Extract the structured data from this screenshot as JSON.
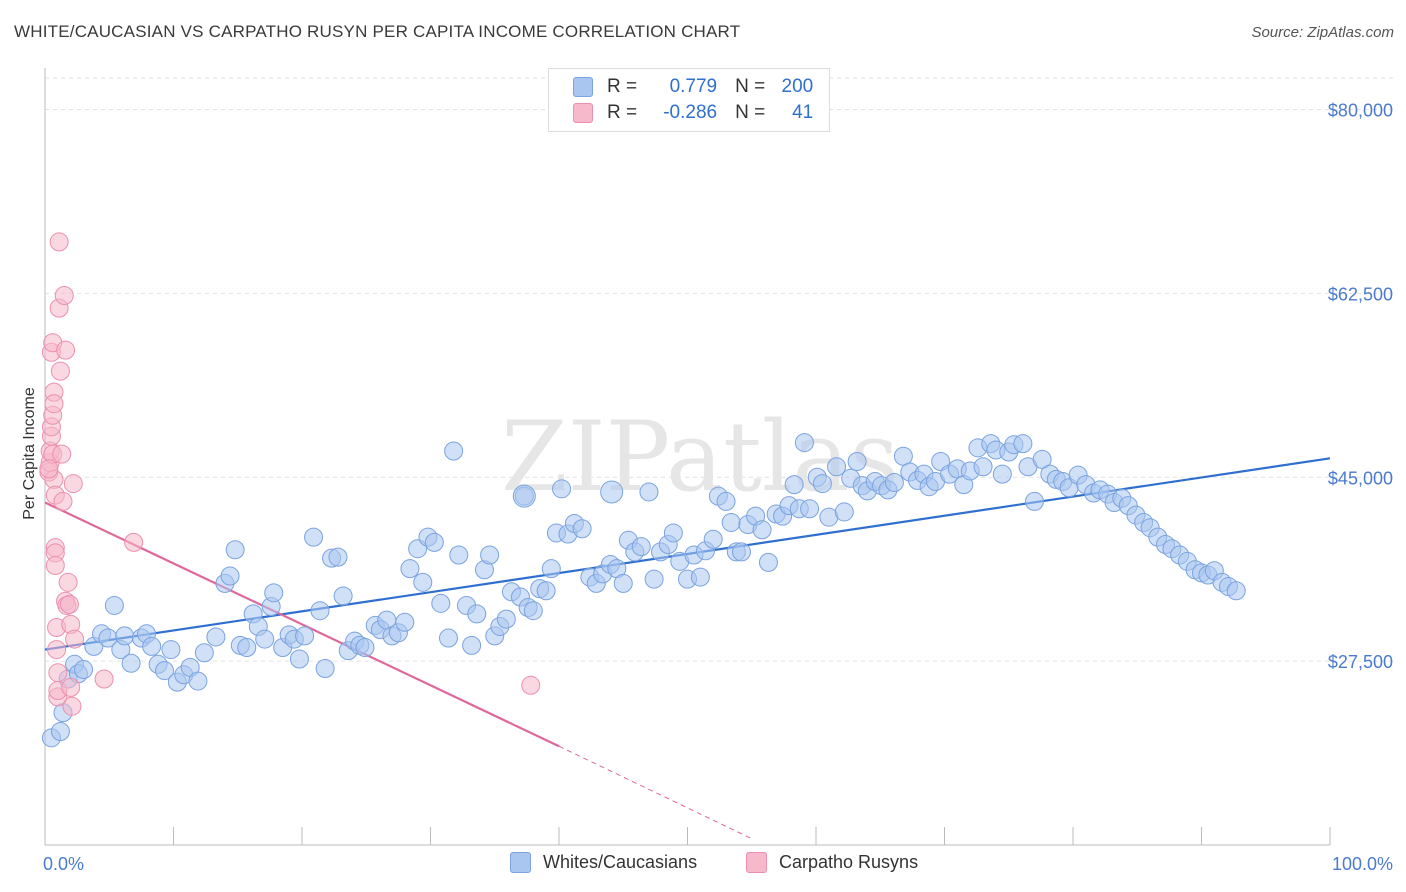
{
  "title": "WHITE/CAUCASIAN VS CARPATHO RUSYN PER CAPITA INCOME CORRELATION CHART",
  "source": "Source: ZipAtlas.com",
  "watermark": "ZIPatlas",
  "legend": {
    "rows": [
      {
        "r_label": "R =",
        "r_value": "0.779",
        "n_label": "N =",
        "n_value": "200",
        "color": "#a9c6f0",
        "border": "#7aa3e0"
      },
      {
        "r_label": "R =",
        "r_value": "-0.286",
        "n_label": "N =",
        "n_value": "41",
        "color": "#f6b8cb",
        "border": "#ec8fae"
      }
    ]
  },
  "bottom_legend": [
    {
      "label": "Whites/Caucasians",
      "color": "#a9c6f0",
      "border": "#7aa3e0"
    },
    {
      "label": "Carpatho Rusyns",
      "color": "#f6b8cb",
      "border": "#ec8fae"
    }
  ],
  "chart_data": {
    "type": "scatter",
    "title": "WHITE/CAUCASIAN VS CARPATHO RUSYN PER CAPITA INCOME CORRELATION CHART",
    "xlabel": "",
    "ylabel": "Per Capita Income",
    "xlim": [
      0,
      100
    ],
    "ylim": [
      10000,
      83000
    ],
    "x_tick_labels": [
      "0.0%",
      "100.0%"
    ],
    "y_ticks": [
      27500,
      45000,
      62500,
      80000
    ],
    "y_tick_labels": [
      "$27,500",
      "$45,000",
      "$62,500",
      "$80,000"
    ],
    "grid": true,
    "legend_placement": "top-center",
    "series": [
      {
        "name": "Whites/Caucasians",
        "color": "#a9c6f0",
        "stroke": "#7aa3e0",
        "trend": {
          "x0": 0,
          "y0": 28600,
          "x1": 100,
          "y1": 46800,
          "color": "#2f6fd0"
        },
        "points": [
          [
            0.5,
            20200
          ],
          [
            1.2,
            20800
          ],
          [
            1.4,
            22600
          ],
          [
            1.8,
            25800
          ],
          [
            2.3,
            27200
          ],
          [
            2.6,
            26300
          ],
          [
            3.0,
            26700
          ],
          [
            3.8,
            28900
          ],
          [
            4.4,
            30100
          ],
          [
            4.9,
            29700
          ],
          [
            5.4,
            32800
          ],
          [
            5.9,
            28600
          ],
          [
            6.2,
            29900
          ],
          [
            6.7,
            27300
          ],
          [
            7.5,
            29700
          ],
          [
            7.9,
            30100
          ],
          [
            8.3,
            28900
          ],
          [
            8.8,
            27200
          ],
          [
            9.3,
            26600
          ],
          [
            9.8,
            28600
          ],
          [
            10.3,
            25500
          ],
          [
            10.8,
            26200
          ],
          [
            11.3,
            26900
          ],
          [
            11.9,
            25600
          ],
          [
            12.4,
            28300
          ],
          [
            13.3,
            29800
          ],
          [
            14.0,
            34900
          ],
          [
            14.4,
            35600
          ],
          [
            14.8,
            38100
          ],
          [
            15.2,
            29000
          ],
          [
            15.7,
            28800
          ],
          [
            16.2,
            32000
          ],
          [
            16.6,
            30800
          ],
          [
            17.1,
            29600
          ],
          [
            17.6,
            32700
          ],
          [
            17.8,
            34000
          ],
          [
            18.5,
            28800
          ],
          [
            19.0,
            30000
          ],
          [
            19.4,
            29600
          ],
          [
            19.8,
            27700
          ],
          [
            20.2,
            29900
          ],
          [
            20.9,
            39300
          ],
          [
            21.4,
            32300
          ],
          [
            21.8,
            26800
          ],
          [
            22.3,
            37300
          ],
          [
            22.8,
            37400
          ],
          [
            23.2,
            33700
          ],
          [
            23.6,
            28500
          ],
          [
            24.1,
            29400
          ],
          [
            24.5,
            29000
          ],
          [
            24.9,
            28800
          ],
          [
            25.7,
            30900
          ],
          [
            26.1,
            30500
          ],
          [
            26.6,
            31400
          ],
          [
            27.0,
            29900
          ],
          [
            27.5,
            30200
          ],
          [
            28.0,
            31200
          ],
          [
            28.4,
            36300
          ],
          [
            29.0,
            38200
          ],
          [
            29.4,
            35000
          ],
          [
            29.8,
            39300
          ],
          [
            30.3,
            38800
          ],
          [
            30.8,
            33000
          ],
          [
            31.4,
            29700
          ],
          [
            31.8,
            47500
          ],
          [
            32.2,
            37600
          ],
          [
            32.8,
            32800
          ],
          [
            33.2,
            29000
          ],
          [
            33.6,
            32000
          ],
          [
            34.2,
            36200
          ],
          [
            34.6,
            37600
          ],
          [
            35.0,
            29900
          ],
          [
            35.4,
            30800
          ],
          [
            35.9,
            31500
          ],
          [
            36.3,
            34100
          ],
          [
            37.0,
            33600
          ],
          [
            37.3,
            43200
          ],
          [
            37.6,
            32600
          ],
          [
            38.0,
            32300
          ],
          [
            38.5,
            34400
          ],
          [
            39.0,
            34200
          ],
          [
            39.4,
            36300
          ],
          [
            39.8,
            39700
          ],
          [
            40.2,
            43900
          ],
          [
            40.7,
            39600
          ],
          [
            41.2,
            40600
          ],
          [
            41.8,
            40100
          ],
          [
            42.4,
            35500
          ],
          [
            42.9,
            34900
          ],
          [
            43.4,
            35800
          ],
          [
            44.0,
            36700
          ],
          [
            44.5,
            36300
          ],
          [
            45.0,
            34900
          ],
          [
            45.4,
            39000
          ],
          [
            45.9,
            37900
          ],
          [
            46.4,
            38400
          ],
          [
            47.0,
            43600
          ],
          [
            47.4,
            35300
          ],
          [
            47.9,
            37900
          ],
          [
            48.5,
            38600
          ],
          [
            48.9,
            39700
          ],
          [
            49.4,
            37000
          ],
          [
            50.0,
            35300
          ],
          [
            50.5,
            37600
          ],
          [
            51.0,
            35500
          ],
          [
            51.4,
            38000
          ],
          [
            52.0,
            39100
          ],
          [
            52.4,
            43200
          ],
          [
            53.0,
            42700
          ],
          [
            53.4,
            40700
          ],
          [
            53.8,
            37900
          ],
          [
            54.2,
            37900
          ],
          [
            54.7,
            40500
          ],
          [
            55.3,
            41300
          ],
          [
            55.8,
            40000
          ],
          [
            56.3,
            36900
          ],
          [
            56.9,
            41500
          ],
          [
            57.4,
            41300
          ],
          [
            57.9,
            42300
          ],
          [
            58.3,
            44300
          ],
          [
            58.7,
            42000
          ],
          [
            59.1,
            48300
          ],
          [
            59.5,
            42000
          ],
          [
            60.1,
            45000
          ],
          [
            60.5,
            44400
          ],
          [
            61.0,
            41200
          ],
          [
            61.6,
            46000
          ],
          [
            62.2,
            41700
          ],
          [
            62.7,
            44900
          ],
          [
            63.2,
            46500
          ],
          [
            63.6,
            44200
          ],
          [
            64.0,
            43700
          ],
          [
            64.6,
            44600
          ],
          [
            65.1,
            44200
          ],
          [
            65.6,
            43800
          ],
          [
            66.1,
            44500
          ],
          [
            66.8,
            47000
          ],
          [
            67.3,
            45500
          ],
          [
            67.9,
            44700
          ],
          [
            68.4,
            45300
          ],
          [
            68.8,
            44100
          ],
          [
            69.3,
            44600
          ],
          [
            69.7,
            46500
          ],
          [
            70.4,
            45300
          ],
          [
            71.0,
            45800
          ],
          [
            71.5,
            44300
          ],
          [
            72.0,
            45600
          ],
          [
            72.6,
            47800
          ],
          [
            73.0,
            46000
          ],
          [
            73.6,
            48200
          ],
          [
            74.0,
            47600
          ],
          [
            74.5,
            45300
          ],
          [
            75.0,
            47400
          ],
          [
            75.4,
            48100
          ],
          [
            76.1,
            48200
          ],
          [
            76.5,
            46000
          ],
          [
            77.0,
            42700
          ],
          [
            77.6,
            46700
          ],
          [
            78.2,
            45300
          ],
          [
            78.7,
            44800
          ],
          [
            79.2,
            44600
          ],
          [
            79.7,
            44000
          ],
          [
            80.4,
            45200
          ],
          [
            81.0,
            44300
          ],
          [
            81.6,
            43500
          ],
          [
            82.1,
            43800
          ],
          [
            82.7,
            43400
          ],
          [
            83.2,
            42600
          ],
          [
            83.8,
            43000
          ],
          [
            84.3,
            42300
          ],
          [
            84.9,
            41400
          ],
          [
            85.5,
            40700
          ],
          [
            86.0,
            40200
          ],
          [
            86.6,
            39300
          ],
          [
            87.2,
            38600
          ],
          [
            87.7,
            38200
          ],
          [
            88.3,
            37600
          ],
          [
            88.9,
            37000
          ],
          [
            89.5,
            36200
          ],
          [
            90.0,
            35900
          ],
          [
            90.5,
            35700
          ],
          [
            91.0,
            36100
          ],
          [
            91.6,
            35000
          ],
          [
            92.1,
            34600
          ],
          [
            92.7,
            34200
          ]
        ],
        "large_points": [
          [
            37.3,
            43200
          ],
          [
            44.1,
            43600
          ]
        ]
      },
      {
        "name": "Carpatho Rusyns",
        "color": "#f6b8cb",
        "stroke": "#ec8fae",
        "trend": {
          "x0": 0,
          "y0": 42600,
          "x1": 40,
          "y1": 19400,
          "dash_x1": 55,
          "dash_y1": 10600,
          "color": "#e0679a"
        },
        "points": [
          [
            0.3,
            45500
          ],
          [
            0.4,
            46400
          ],
          [
            0.4,
            47500
          ],
          [
            0.5,
            48900
          ],
          [
            0.5,
            49800
          ],
          [
            0.5,
            56900
          ],
          [
            0.6,
            57800
          ],
          [
            0.6,
            50900
          ],
          [
            0.6,
            47200
          ],
          [
            0.7,
            53100
          ],
          [
            0.7,
            52000
          ],
          [
            0.7,
            44800
          ],
          [
            0.8,
            43300
          ],
          [
            0.8,
            38300
          ],
          [
            0.8,
            37800
          ],
          [
            0.8,
            36600
          ],
          [
            0.9,
            30700
          ],
          [
            0.9,
            28600
          ],
          [
            1.0,
            24100
          ],
          [
            1.0,
            24700
          ],
          [
            1.0,
            26400
          ],
          [
            1.1,
            61100
          ],
          [
            1.1,
            67400
          ],
          [
            1.2,
            55100
          ],
          [
            1.3,
            47200
          ],
          [
            1.4,
            42700
          ],
          [
            1.5,
            62300
          ],
          [
            1.6,
            57100
          ],
          [
            1.6,
            33200
          ],
          [
            1.7,
            32800
          ],
          [
            1.8,
            35000
          ],
          [
            1.9,
            32900
          ],
          [
            2.0,
            31000
          ],
          [
            2.0,
            25000
          ],
          [
            2.1,
            23200
          ],
          [
            2.2,
            44400
          ],
          [
            2.3,
            29600
          ],
          [
            4.6,
            25800
          ],
          [
            6.9,
            38800
          ],
          [
            37.8,
            25200
          ],
          [
            0.3,
            45800
          ]
        ]
      }
    ]
  }
}
